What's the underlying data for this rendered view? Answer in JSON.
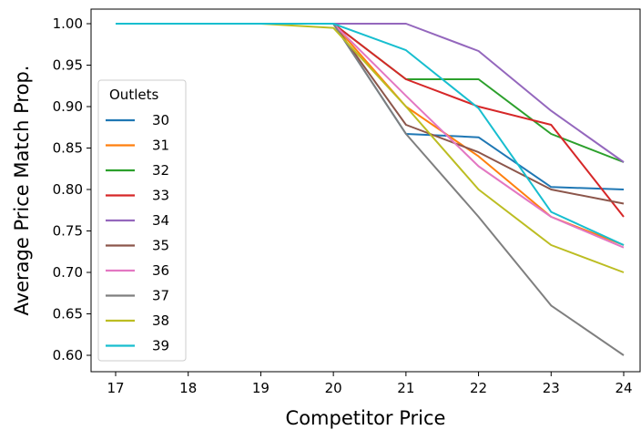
{
  "chart_data": {
    "type": "line",
    "xlabel": "Competitor Price",
    "ylabel": "Average Price Match Prop.",
    "x": [
      17,
      18,
      19,
      20,
      21,
      22,
      23,
      24
    ],
    "xlim": [
      17,
      24
    ],
    "ylim": [
      0.6,
      1.0
    ],
    "yticks": [
      "0.60",
      "0.65",
      "0.70",
      "0.75",
      "0.80",
      "0.85",
      "0.90",
      "0.95",
      "1.00"
    ],
    "xticks": [
      "17",
      "18",
      "19",
      "20",
      "21",
      "22",
      "23",
      "24"
    ],
    "grid": false,
    "legend": {
      "title": "Outlets",
      "position": "center-left"
    },
    "series": [
      {
        "name": "30",
        "color": "#1f77b4",
        "values": [
          1.0,
          1.0,
          1.0,
          1.0,
          0.867,
          0.863,
          0.803,
          0.8
        ]
      },
      {
        "name": "31",
        "color": "#ff7f0e",
        "values": [
          1.0,
          1.0,
          1.0,
          1.0,
          0.9,
          0.84,
          0.767,
          0.733
        ]
      },
      {
        "name": "32",
        "color": "#2ca02c",
        "values": [
          1.0,
          1.0,
          1.0,
          1.0,
          0.933,
          0.933,
          0.867,
          0.833
        ]
      },
      {
        "name": "33",
        "color": "#d62728",
        "values": [
          1.0,
          1.0,
          1.0,
          1.0,
          0.933,
          0.9,
          0.878,
          0.767
        ]
      },
      {
        "name": "34",
        "color": "#9467bd",
        "values": [
          1.0,
          1.0,
          1.0,
          1.0,
          1.0,
          0.967,
          0.895,
          0.833
        ]
      },
      {
        "name": "35",
        "color": "#8c564b",
        "values": [
          1.0,
          1.0,
          1.0,
          1.0,
          0.878,
          0.845,
          0.8,
          0.783
        ]
      },
      {
        "name": "36",
        "color": "#e377c2",
        "values": [
          1.0,
          1.0,
          1.0,
          1.0,
          0.913,
          0.828,
          0.767,
          0.73
        ]
      },
      {
        "name": "37",
        "color": "#7f7f7f",
        "values": [
          1.0,
          1.0,
          1.0,
          1.0,
          0.867,
          0.767,
          0.66,
          0.6
        ]
      },
      {
        "name": "38",
        "color": "#bcbd22",
        "values": [
          1.0,
          1.0,
          1.0,
          0.995,
          0.9,
          0.8,
          0.733,
          0.7
        ]
      },
      {
        "name": "39",
        "color": "#17becf",
        "values": [
          1.0,
          1.0,
          1.0,
          1.0,
          0.968,
          0.898,
          0.773,
          0.733
        ]
      }
    ]
  }
}
